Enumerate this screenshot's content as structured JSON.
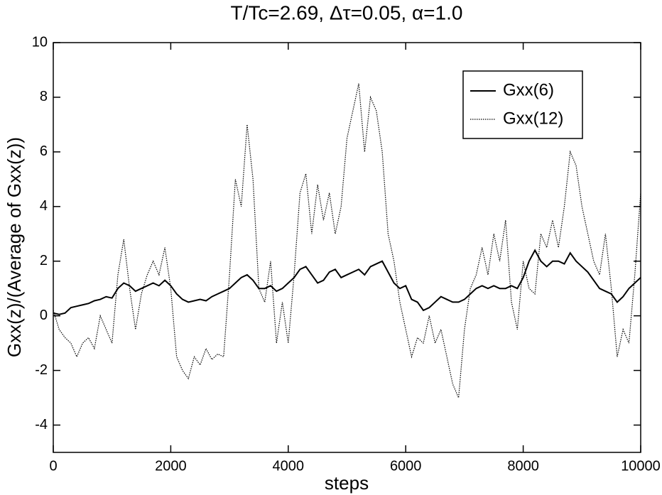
{
  "chart_data": {
    "type": "line",
    "title": "T/Tc=2.69, Δτ=0.05, α=1.0",
    "xlabel": "steps",
    "ylabel": "Gxx(z)/(Average of Gxx(z))",
    "xlim": [
      0,
      10000
    ],
    "ylim": [
      -5,
      10
    ],
    "xticks": [
      0,
      2000,
      4000,
      6000,
      8000,
      10000
    ],
    "yticks": [
      -4,
      -2,
      0,
      2,
      4,
      6,
      8,
      10
    ],
    "legend": "upper right",
    "x": [
      0,
      100,
      200,
      300,
      400,
      500,
      600,
      700,
      800,
      900,
      1000,
      1100,
      1200,
      1300,
      1400,
      1500,
      1600,
      1700,
      1800,
      1900,
      2000,
      2100,
      2200,
      2300,
      2400,
      2500,
      2600,
      2700,
      2800,
      2900,
      3000,
      3100,
      3200,
      3300,
      3400,
      3500,
      3600,
      3700,
      3800,
      3900,
      4000,
      4100,
      4200,
      4300,
      4400,
      4500,
      4600,
      4700,
      4800,
      4900,
      5000,
      5100,
      5200,
      5300,
      5400,
      5500,
      5600,
      5700,
      5800,
      5900,
      6000,
      6100,
      6200,
      6300,
      6400,
      6500,
      6600,
      6700,
      6800,
      6900,
      7000,
      7100,
      7200,
      7300,
      7400,
      7500,
      7600,
      7700,
      7800,
      7900,
      8000,
      8100,
      8200,
      8300,
      8400,
      8500,
      8600,
      8700,
      8800,
      8900,
      9000,
      9100,
      9200,
      9300,
      9400,
      9500,
      9600,
      9700,
      9800,
      9900,
      10000
    ],
    "series": [
      {
        "name": "Gxx(6)",
        "color": "#000000",
        "line_style": "solid",
        "values": [
          0.1,
          0.05,
          0.1,
          0.3,
          0.35,
          0.4,
          0.45,
          0.55,
          0.6,
          0.7,
          0.65,
          1.0,
          1.2,
          1.1,
          0.9,
          1.0,
          1.1,
          1.2,
          1.1,
          1.3,
          1.1,
          0.8,
          0.6,
          0.5,
          0.55,
          0.6,
          0.55,
          0.7,
          0.8,
          0.9,
          1.0,
          1.2,
          1.4,
          1.5,
          1.3,
          1.0,
          1.0,
          1.1,
          0.9,
          1.0,
          1.2,
          1.4,
          1.7,
          1.8,
          1.5,
          1.2,
          1.3,
          1.6,
          1.7,
          1.4,
          1.5,
          1.6,
          1.7,
          1.5,
          1.8,
          1.9,
          2.0,
          1.6,
          1.2,
          1.0,
          1.1,
          0.6,
          0.5,
          0.2,
          0.3,
          0.5,
          0.7,
          0.6,
          0.5,
          0.5,
          0.6,
          0.8,
          1.0,
          1.1,
          1.0,
          1.1,
          1.0,
          1.0,
          1.1,
          1.0,
          1.4,
          2.0,
          2.4,
          2.0,
          1.8,
          2.0,
          2.0,
          1.9,
          2.3,
          2.0,
          1.8,
          1.6,
          1.3,
          1.0,
          0.9,
          0.8,
          0.5,
          0.7,
          1.0,
          1.2,
          1.4
        ]
      },
      {
        "name": "Gxx(12)",
        "color": "#000000",
        "line_style": "dotted",
        "values": [
          0.2,
          -0.5,
          -0.8,
          -1.0,
          -1.5,
          -1.0,
          -0.8,
          -1.2,
          0,
          -0.5,
          -1.0,
          1.5,
          2.8,
          1.0,
          -0.5,
          0.8,
          1.5,
          2.0,
          1.5,
          2.5,
          1.0,
          -1.5,
          -2.0,
          -2.3,
          -1.5,
          -1.8,
          -1.2,
          -1.6,
          -1.4,
          -1.5,
          1.5,
          5.0,
          4.0,
          7.0,
          5.0,
          1.0,
          0.5,
          2.0,
          -1.0,
          0.5,
          -1.0,
          1.5,
          4.5,
          5.2,
          3.0,
          4.8,
          3.5,
          4.5,
          3.0,
          4.0,
          6.5,
          7.5,
          8.5,
          6.0,
          8.0,
          7.5,
          6.0,
          3.0,
          2.0,
          0.5,
          -0.5,
          -1.5,
          -0.8,
          -1.0,
          0,
          -1.0,
          -0.5,
          -1.5,
          -2.5,
          -3.0,
          -0.5,
          1.0,
          1.5,
          2.5,
          1.5,
          3.0,
          2.0,
          3.5,
          0.5,
          -0.5,
          2.0,
          1.0,
          0.8,
          3.0,
          2.5,
          3.5,
          2.5,
          4.0,
          6.0,
          5.5,
          4.0,
          3.0,
          2.0,
          1.5,
          3.0,
          1.0,
          -1.5,
          -0.5,
          -1.0,
          1.5,
          4.5
        ]
      }
    ]
  }
}
